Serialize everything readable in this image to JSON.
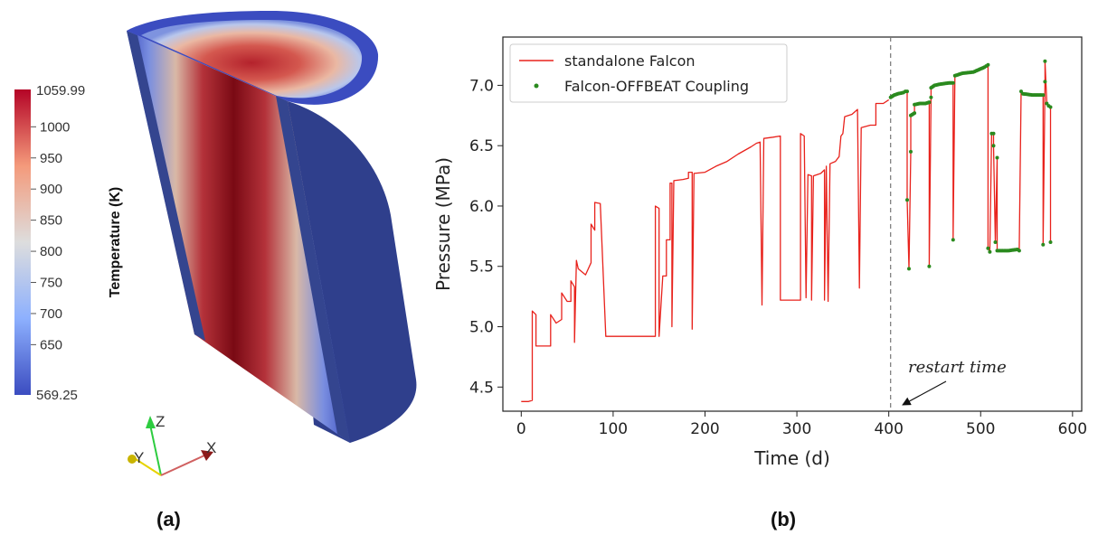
{
  "panel_a": {
    "label": "(a)",
    "colorbar": {
      "title": "Temperature (K)",
      "max_label": "1059.99",
      "min_label": "569.25",
      "min": 569.25,
      "max": 1059.99,
      "ticks": [
        "1000",
        "950",
        "900",
        "850",
        "800",
        "750",
        "700",
        "650"
      ],
      "colors": [
        "#3b4cc0",
        "#8db0fe",
        "#dddddd",
        "#f49a7b",
        "#b40426"
      ]
    },
    "orientation_axes": {
      "z": "Z",
      "y": "Y",
      "x": "X",
      "colors": {
        "z": "#2ecc40",
        "y": "#e6d300",
        "x": "#c0392b"
      }
    }
  },
  "panel_b": {
    "label": "(b)",
    "annotation": "restart time",
    "chart_data": {
      "type": "line",
      "xlabel": "Time (d)",
      "ylabel": "Pressure (MPa)",
      "xlim": [
        -20,
        610
      ],
      "ylim": [
        4.3,
        7.4
      ],
      "xticks": [
        0,
        100,
        200,
        300,
        400,
        500,
        600
      ],
      "yticks": [
        4.5,
        5.0,
        5.5,
        6.0,
        6.5,
        7.0
      ],
      "xtick_labels": [
        "0",
        "100",
        "200",
        "300",
        "400",
        "500",
        "600"
      ],
      "ytick_labels": [
        "4.5",
        "5.0",
        "5.5",
        "6.0",
        "6.5",
        "7.0"
      ],
      "restart_time": 402,
      "legend_position": "upper-left",
      "series": [
        {
          "name": "standalone Falcon",
          "color": "#e8221c",
          "kind": "line",
          "points": [
            [
              0,
              4.38
            ],
            [
              8,
              4.38
            ],
            [
              12,
              4.39
            ],
            [
              12,
              5.13
            ],
            [
              16,
              5.1
            ],
            [
              16,
              4.84
            ],
            [
              20,
              4.84
            ],
            [
              32,
              4.84
            ],
            [
              32,
              5.1
            ],
            [
              38,
              5.03
            ],
            [
              44,
              5.06
            ],
            [
              44,
              5.28
            ],
            [
              50,
              5.21
            ],
            [
              54,
              5.21
            ],
            [
              54,
              5.38
            ],
            [
              58,
              5.33
            ],
            [
              58,
              4.87
            ],
            [
              60,
              5.55
            ],
            [
              62,
              5.48
            ],
            [
              70,
              5.43
            ],
            [
              76,
              5.53
            ],
            [
              76,
              5.85
            ],
            [
              80,
              5.8
            ],
            [
              80,
              6.03
            ],
            [
              86,
              6.02
            ],
            [
              92,
              4.92
            ],
            [
              100,
              4.92
            ],
            [
              146,
              4.92
            ],
            [
              146,
              6.0
            ],
            [
              150,
              5.98
            ],
            [
              150,
              4.92
            ],
            [
              154,
              5.42
            ],
            [
              158,
              5.42
            ],
            [
              158,
              5.72
            ],
            [
              162,
              5.72
            ],
            [
              162,
              6.19
            ],
            [
              164,
              6.19
            ],
            [
              164,
              5.0
            ],
            [
              166,
              6.21
            ],
            [
              176,
              6.22
            ],
            [
              182,
              6.23
            ],
            [
              182,
              6.28
            ],
            [
              186,
              6.28
            ],
            [
              186,
              4.98
            ],
            [
              188,
              6.27
            ],
            [
              200,
              6.28
            ],
            [
              212,
              6.33
            ],
            [
              224,
              6.37
            ],
            [
              236,
              6.43
            ],
            [
              250,
              6.49
            ],
            [
              256,
              6.52
            ],
            [
              260,
              6.53
            ],
            [
              262,
              5.18
            ],
            [
              264,
              6.56
            ],
            [
              274,
              6.57
            ],
            [
              282,
              6.58
            ],
            [
              282,
              5.22
            ],
            [
              298,
              5.22
            ],
            [
              304,
              5.22
            ],
            [
              304,
              6.6
            ],
            [
              308,
              6.58
            ],
            [
              310,
              5.24
            ],
            [
              312,
              6.26
            ],
            [
              316,
              6.25
            ],
            [
              316,
              5.22
            ],
            [
              318,
              6.25
            ],
            [
              326,
              6.27
            ],
            [
              330,
              6.3
            ],
            [
              330,
              5.22
            ],
            [
              332,
              6.33
            ],
            [
              334,
              5.21
            ],
            [
              336,
              6.35
            ],
            [
              342,
              6.37
            ],
            [
              346,
              6.41
            ],
            [
              348,
              6.58
            ],
            [
              350,
              6.6
            ],
            [
              352,
              6.74
            ],
            [
              360,
              6.76
            ],
            [
              366,
              6.8
            ],
            [
              368,
              5.32
            ],
            [
              370,
              6.65
            ],
            [
              380,
              6.67
            ],
            [
              386,
              6.67
            ],
            [
              386,
              6.85
            ],
            [
              394,
              6.85
            ],
            [
              400,
              6.88
            ]
          ]
        },
        {
          "name": "Falcon-OFFBEAT Coupling",
          "color": "#2a8a1e",
          "kind": "scatter-line",
          "points": [
            [
              402,
              6.9
            ],
            [
              406,
              6.92
            ],
            [
              410,
              6.93
            ],
            [
              416,
              6.94
            ],
            [
              418,
              6.95
            ],
            [
              420,
              6.95
            ],
            [
              420,
              6.05
            ],
            [
              422,
              5.48
            ],
            [
              424,
              6.45
            ],
            [
              424,
              6.75
            ],
            [
              428,
              6.77
            ],
            [
              428,
              6.84
            ],
            [
              434,
              6.85
            ],
            [
              440,
              6.85
            ],
            [
              444,
              6.86
            ],
            [
              444,
              5.5
            ],
            [
              446,
              6.9
            ],
            [
              446,
              6.98
            ],
            [
              450,
              7.0
            ],
            [
              456,
              7.01
            ],
            [
              466,
              7.02
            ],
            [
              470,
              7.02
            ],
            [
              470,
              5.72
            ],
            [
              472,
              7.08
            ],
            [
              480,
              7.1
            ],
            [
              492,
              7.11
            ],
            [
              504,
              7.15
            ],
            [
              506,
              7.16
            ],
            [
              508,
              7.17
            ],
            [
              508,
              5.65
            ],
            [
              510,
              5.62
            ],
            [
              512,
              6.6
            ],
            [
              514,
              6.6
            ],
            [
              514,
              6.5
            ],
            [
              516,
              5.7
            ],
            [
              518,
              6.4
            ],
            [
              518,
              5.63
            ],
            [
              530,
              5.63
            ],
            [
              540,
              5.64
            ],
            [
              542,
              5.63
            ],
            [
              544,
              6.95
            ],
            [
              546,
              6.93
            ],
            [
              556,
              6.92
            ],
            [
              566,
              6.92
            ],
            [
              568,
              6.92
            ],
            [
              568,
              5.68
            ],
            [
              570,
              7.03
            ],
            [
              570,
              7.2
            ],
            [
              572,
              6.85
            ],
            [
              574,
              6.83
            ],
            [
              576,
              6.82
            ],
            [
              576,
              5.7
            ]
          ]
        }
      ]
    }
  }
}
